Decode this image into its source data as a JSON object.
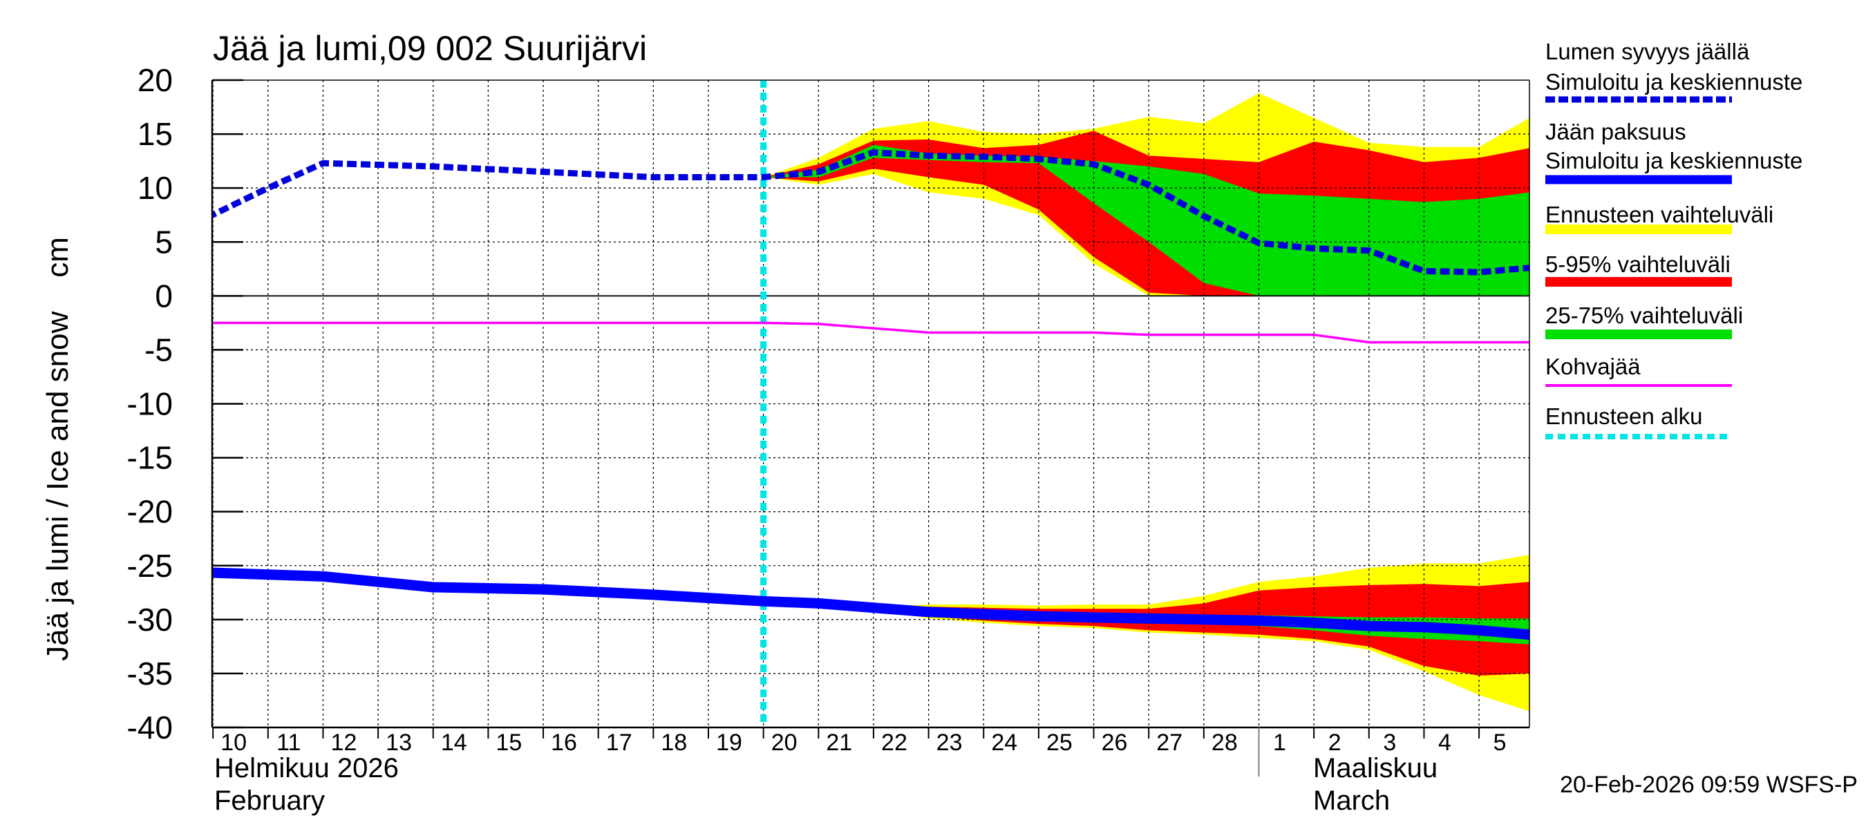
{
  "chart_data": {
    "type": "area",
    "title": "Jää ja lumi,09 002 Suurijärvi",
    "ylabel": "Jää ja lumi / Ice and snow    cm",
    "ylim": [
      -40,
      20
    ],
    "yticks": [
      20,
      15,
      10,
      5,
      0,
      -5,
      -10,
      -15,
      -20,
      -25,
      -30,
      -35,
      -40
    ],
    "grid": true,
    "legend_position": "right",
    "x_start": "2026-02-10",
    "x_end": "2026-03-05",
    "x_tick_labels": [
      "10",
      "11",
      "12",
      "13",
      "14",
      "15",
      "16",
      "17",
      "18",
      "19",
      "20",
      "21",
      "22",
      "23",
      "24",
      "25",
      "26",
      "27",
      "28",
      "1",
      "2",
      "3",
      "4",
      "5"
    ],
    "month_labels": [
      {
        "line1": "Helmikuu  2026",
        "line2": "February"
      },
      {
        "line1": "Maaliskuu",
        "line2": "March"
      }
    ],
    "forecast_start": "2026-02-20",
    "timestamp": "20-Feb-2026 09:59 WSFS-P",
    "legend": [
      {
        "label_lines": [
          "Lumen syvyys jäällä",
          "Simuloitu ja keskiennuste"
        ],
        "color": "#0000dd",
        "style": "dashed"
      },
      {
        "label_lines": [
          "Jään paksuus",
          "Simuloitu ja keskiennuste"
        ],
        "color": "#0000ff",
        "style": "solid"
      },
      {
        "label_lines": [
          "Ennusteen vaihteluväli"
        ],
        "color": "#ffff00",
        "style": "band"
      },
      {
        "label_lines": [
          "5-95% vaihteluväli"
        ],
        "color": "#ff0000",
        "style": "band"
      },
      {
        "label_lines": [
          "25-75% vaihteluväli"
        ],
        "color": "#00dd00",
        "style": "band"
      },
      {
        "label_lines": [
          "Kohvajää"
        ],
        "color": "#ff00ff",
        "style": "thin"
      },
      {
        "label_lines": [
          "Ennusteen alku"
        ],
        "color": "#00e5e5",
        "style": "dotted"
      }
    ],
    "series": [
      {
        "name": "Lumen syvyys jäällä — Simuloitu ja keskiennuste",
        "x": [
          "2026-02-09T16:00",
          "2026-02-11",
          "2026-02-12",
          "2026-02-14",
          "2026-02-16",
          "2026-02-18",
          "2026-02-20",
          "2026-02-21",
          "2026-02-22",
          "2026-02-23",
          "2026-02-24",
          "2026-02-25",
          "2026-02-26",
          "2026-02-27",
          "2026-02-28",
          "2026-03-01",
          "2026-03-02",
          "2026-03-03",
          "2026-03-04",
          "2026-03-05",
          "2026-03-05T22:00"
        ],
        "values": [
          6.7,
          10.0,
          12.3,
          12.0,
          11.5,
          11.0,
          11.0,
          11.5,
          13.3,
          13.0,
          12.9,
          12.7,
          12.2,
          10.3,
          7.4,
          4.9,
          4.4,
          4.2,
          2.3,
          2.2,
          2.6
        ]
      },
      {
        "name": "Jään paksuus — Simuloitu ja keskiennuste",
        "x": [
          "2026-02-09T16:00",
          "2026-02-12",
          "2026-02-14",
          "2026-02-16",
          "2026-02-18",
          "2026-02-20",
          "2026-02-21",
          "2026-02-22",
          "2026-02-23",
          "2026-02-24",
          "2026-02-25",
          "2026-02-26",
          "2026-02-27",
          "2026-02-28",
          "2026-03-01",
          "2026-03-02",
          "2026-03-03",
          "2026-03-04",
          "2026-03-05",
          "2026-03-05T22:00"
        ],
        "values": [
          -25.6,
          -26.0,
          -27.0,
          -27.2,
          -27.7,
          -28.3,
          -28.5,
          -28.9,
          -29.3,
          -29.5,
          -29.7,
          -29.8,
          -29.9,
          -30.0,
          -30.1,
          -30.3,
          -30.6,
          -30.7,
          -31.0,
          -31.4
        ]
      },
      {
        "name": "Kohvajää",
        "x": [
          "2026-02-09T16:00",
          "2026-02-20",
          "2026-02-21",
          "2026-02-23",
          "2026-02-26",
          "2026-02-27",
          "2026-03-02",
          "2026-03-03",
          "2026-03-05T22:00"
        ],
        "values": [
          -2.5,
          -2.5,
          -2.6,
          -3.4,
          -3.4,
          -3.6,
          -3.6,
          -4.3,
          -4.3
        ]
      }
    ],
    "bands": {
      "snow": {
        "x": [
          "2026-02-20",
          "2026-02-21",
          "2026-02-22",
          "2026-02-23",
          "2026-02-24",
          "2026-02-25",
          "2026-02-26",
          "2026-02-27",
          "2026-02-28",
          "2026-03-01",
          "2026-03-02",
          "2026-03-03",
          "2026-03-04",
          "2026-03-05",
          "2026-03-05T22:00"
        ],
        "min_max": {
          "low": [
            11.0,
            10.3,
            11.3,
            9.6,
            9.0,
            7.5,
            3.0,
            0.0,
            0.0,
            0.0,
            0.0,
            0.0,
            0.0,
            0.0,
            0.0
          ],
          "high": [
            11.0,
            12.8,
            15.5,
            16.2,
            15.2,
            15.0,
            15.5,
            16.6,
            16.0,
            18.8,
            16.5,
            14.2,
            13.8,
            13.8,
            16.5
          ]
        },
        "p5_95": {
          "low": [
            11.0,
            10.6,
            11.8,
            11.0,
            10.3,
            8.0,
            3.6,
            0.3,
            0.0,
            0.0,
            0.0,
            0.0,
            0.0,
            0.0,
            0.0
          ],
          "high": [
            11.0,
            12.2,
            14.4,
            14.5,
            13.7,
            14.0,
            15.3,
            13.0,
            12.7,
            12.4,
            14.3,
            13.5,
            12.4,
            12.8,
            13.7
          ]
        },
        "p25_75": {
          "low": [
            11.0,
            11.0,
            12.8,
            12.6,
            12.4,
            12.3,
            8.6,
            5.0,
            1.2,
            0.0,
            0.0,
            0.0,
            0.0,
            0.0,
            0.0
          ],
          "high": [
            11.0,
            11.7,
            14.0,
            13.2,
            13.0,
            12.9,
            12.5,
            12.0,
            11.3,
            9.5,
            9.3,
            9.0,
            8.7,
            9.0,
            9.6
          ]
        }
      },
      "ice": {
        "x": [
          "2026-02-20",
          "2026-02-21",
          "2026-02-22",
          "2026-02-23",
          "2026-02-24",
          "2026-02-25",
          "2026-02-26",
          "2026-02-27",
          "2026-02-28",
          "2026-03-01",
          "2026-03-02",
          "2026-03-03",
          "2026-03-04",
          "2026-03-05",
          "2026-03-05T22:00"
        ],
        "min_max": {
          "low": [
            -28.3,
            -28.5,
            -29.0,
            -29.9,
            -30.3,
            -30.6,
            -30.8,
            -31.2,
            -31.4,
            -31.7,
            -32.0,
            -32.8,
            -34.8,
            -37.0,
            -38.5
          ],
          "high": [
            -28.3,
            -28.5,
            -28.8,
            -28.6,
            -28.6,
            -28.7,
            -28.6,
            -28.6,
            -27.8,
            -26.5,
            -26.0,
            -25.2,
            -24.8,
            -24.8,
            -24.0
          ]
        },
        "p5_95": {
          "low": [
            -28.3,
            -28.5,
            -28.9,
            -29.7,
            -30.1,
            -30.4,
            -30.6,
            -31.0,
            -31.2,
            -31.4,
            -31.8,
            -32.5,
            -34.3,
            -35.2,
            -35.0
          ],
          "high": [
            -28.3,
            -28.5,
            -28.8,
            -28.8,
            -28.9,
            -29.0,
            -29.0,
            -29.0,
            -28.5,
            -27.3,
            -27.0,
            -26.8,
            -26.7,
            -26.9,
            -26.5
          ]
        },
        "p25_75": {
          "low": [
            -28.3,
            -28.5,
            -28.9,
            -29.4,
            -29.7,
            -29.9,
            -30.0,
            -30.2,
            -30.4,
            -30.6,
            -31.0,
            -31.5,
            -31.8,
            -32.0,
            -32.3
          ],
          "high": [
            -28.3,
            -28.5,
            -28.9,
            -29.2,
            -29.3,
            -29.4,
            -29.5,
            -29.5,
            -29.6,
            -29.6,
            -29.7,
            -29.8,
            -29.8,
            -29.9,
            -29.9
          ]
        }
      }
    }
  }
}
